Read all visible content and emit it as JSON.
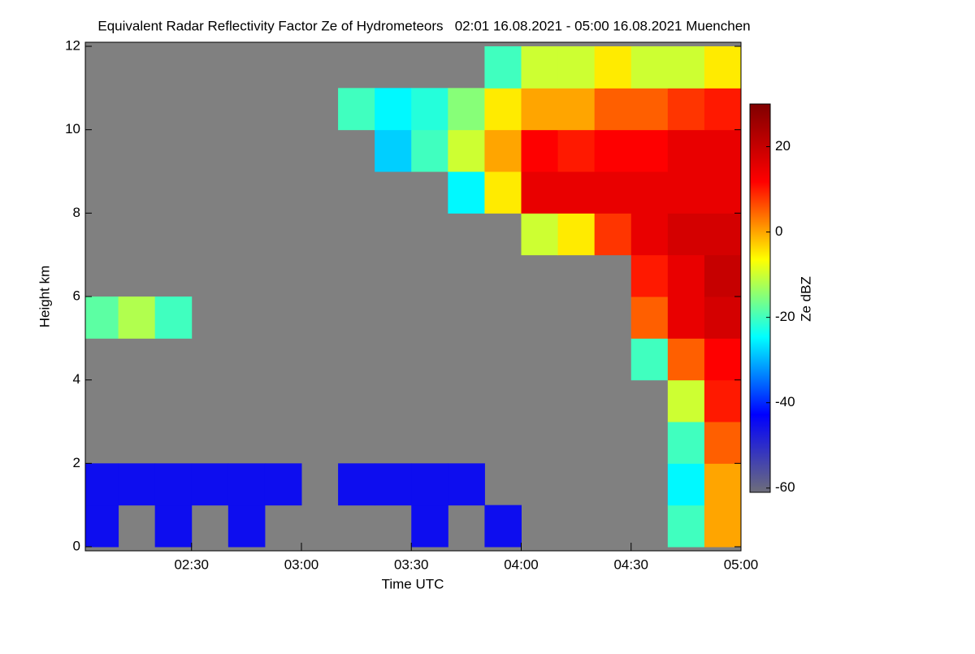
{
  "chart_data": {
    "type": "heatmap",
    "title": "Equivalent Radar Reflectivity Factor Ze of Hydrometeors   02:01 16.08.2021 - 05:00 16.08.2021 Muenchen",
    "x_label": "Time UTC",
    "y_label": "Height km",
    "colorbar_label": "Ze dBZ",
    "xlim": [
      121,
      300
    ],
    "xticks": [
      {
        "value": 150,
        "label": "02:30"
      },
      {
        "value": 180,
        "label": "03:00"
      },
      {
        "value": 210,
        "label": "03:30"
      },
      {
        "value": 240,
        "label": "04:00"
      },
      {
        "value": 270,
        "label": "04:30"
      },
      {
        "value": 300,
        "label": "05:00"
      }
    ],
    "ylim": [
      0,
      12
    ],
    "yticks": [
      0,
      2,
      4,
      6,
      8,
      10,
      12
    ],
    "zlim": [
      -61,
      30
    ],
    "zticks": [
      -60,
      -40,
      -20,
      0,
      20
    ],
    "background": "#808080",
    "colormap": [
      "#6e6e7a",
      "#0000ff",
      "#00ffff",
      "#ffff00",
      "#ff0000",
      "#800000"
    ],
    "xbins": [
      121,
      130,
      140,
      150,
      160,
      170,
      180,
      190,
      200,
      210,
      220,
      230,
      240,
      250,
      260,
      270,
      280,
      290,
      300
    ],
    "ybins": [
      0,
      1,
      2,
      3,
      4,
      5,
      6,
      7,
      8,
      9,
      10,
      11,
      12
    ],
    "values": [
      [
        -45,
        null,
        -45,
        null,
        -45,
        null,
        null,
        null,
        null,
        -45,
        null,
        -45,
        null,
        null,
        null,
        null,
        -20,
        0
      ],
      [
        -45,
        -45,
        -45,
        -45,
        -45,
        -45,
        null,
        -45,
        -45,
        -45,
        -45,
        null,
        null,
        null,
        null,
        null,
        -25,
        0
      ],
      [
        null,
        null,
        null,
        null,
        null,
        null,
        null,
        null,
        null,
        null,
        null,
        null,
        null,
        null,
        null,
        null,
        -20,
        5
      ],
      [
        null,
        null,
        null,
        null,
        null,
        null,
        null,
        null,
        null,
        null,
        null,
        null,
        null,
        null,
        null,
        null,
        -10,
        10
      ],
      [
        null,
        null,
        null,
        null,
        null,
        null,
        null,
        null,
        null,
        null,
        null,
        null,
        null,
        null,
        null,
        -20,
        5,
        12
      ],
      [
        -18,
        -12,
        -20,
        null,
        null,
        null,
        null,
        null,
        null,
        null,
        null,
        null,
        null,
        null,
        null,
        5,
        15,
        18
      ],
      [
        null,
        null,
        null,
        null,
        null,
        null,
        null,
        null,
        null,
        null,
        null,
        null,
        null,
        null,
        null,
        10,
        15,
        20
      ],
      [
        null,
        null,
        null,
        null,
        null,
        null,
        null,
        null,
        null,
        null,
        null,
        null,
        -10,
        -5,
        8,
        15,
        18,
        18
      ],
      [
        null,
        null,
        null,
        null,
        null,
        null,
        null,
        null,
        null,
        null,
        -25,
        -5,
        15,
        15,
        15,
        15,
        15,
        15
      ],
      [
        null,
        null,
        null,
        null,
        null,
        null,
        null,
        null,
        -28,
        -20,
        -10,
        0,
        12,
        10,
        12,
        12,
        15,
        15
      ],
      [
        null,
        null,
        null,
        null,
        null,
        null,
        null,
        -20,
        -25,
        -22,
        -15,
        -5,
        0,
        0,
        5,
        5,
        8,
        10
      ],
      [
        null,
        null,
        null,
        null,
        null,
        null,
        null,
        null,
        null,
        null,
        null,
        -20,
        -10,
        -10,
        -5,
        -10,
        -10,
        -5
      ]
    ]
  }
}
